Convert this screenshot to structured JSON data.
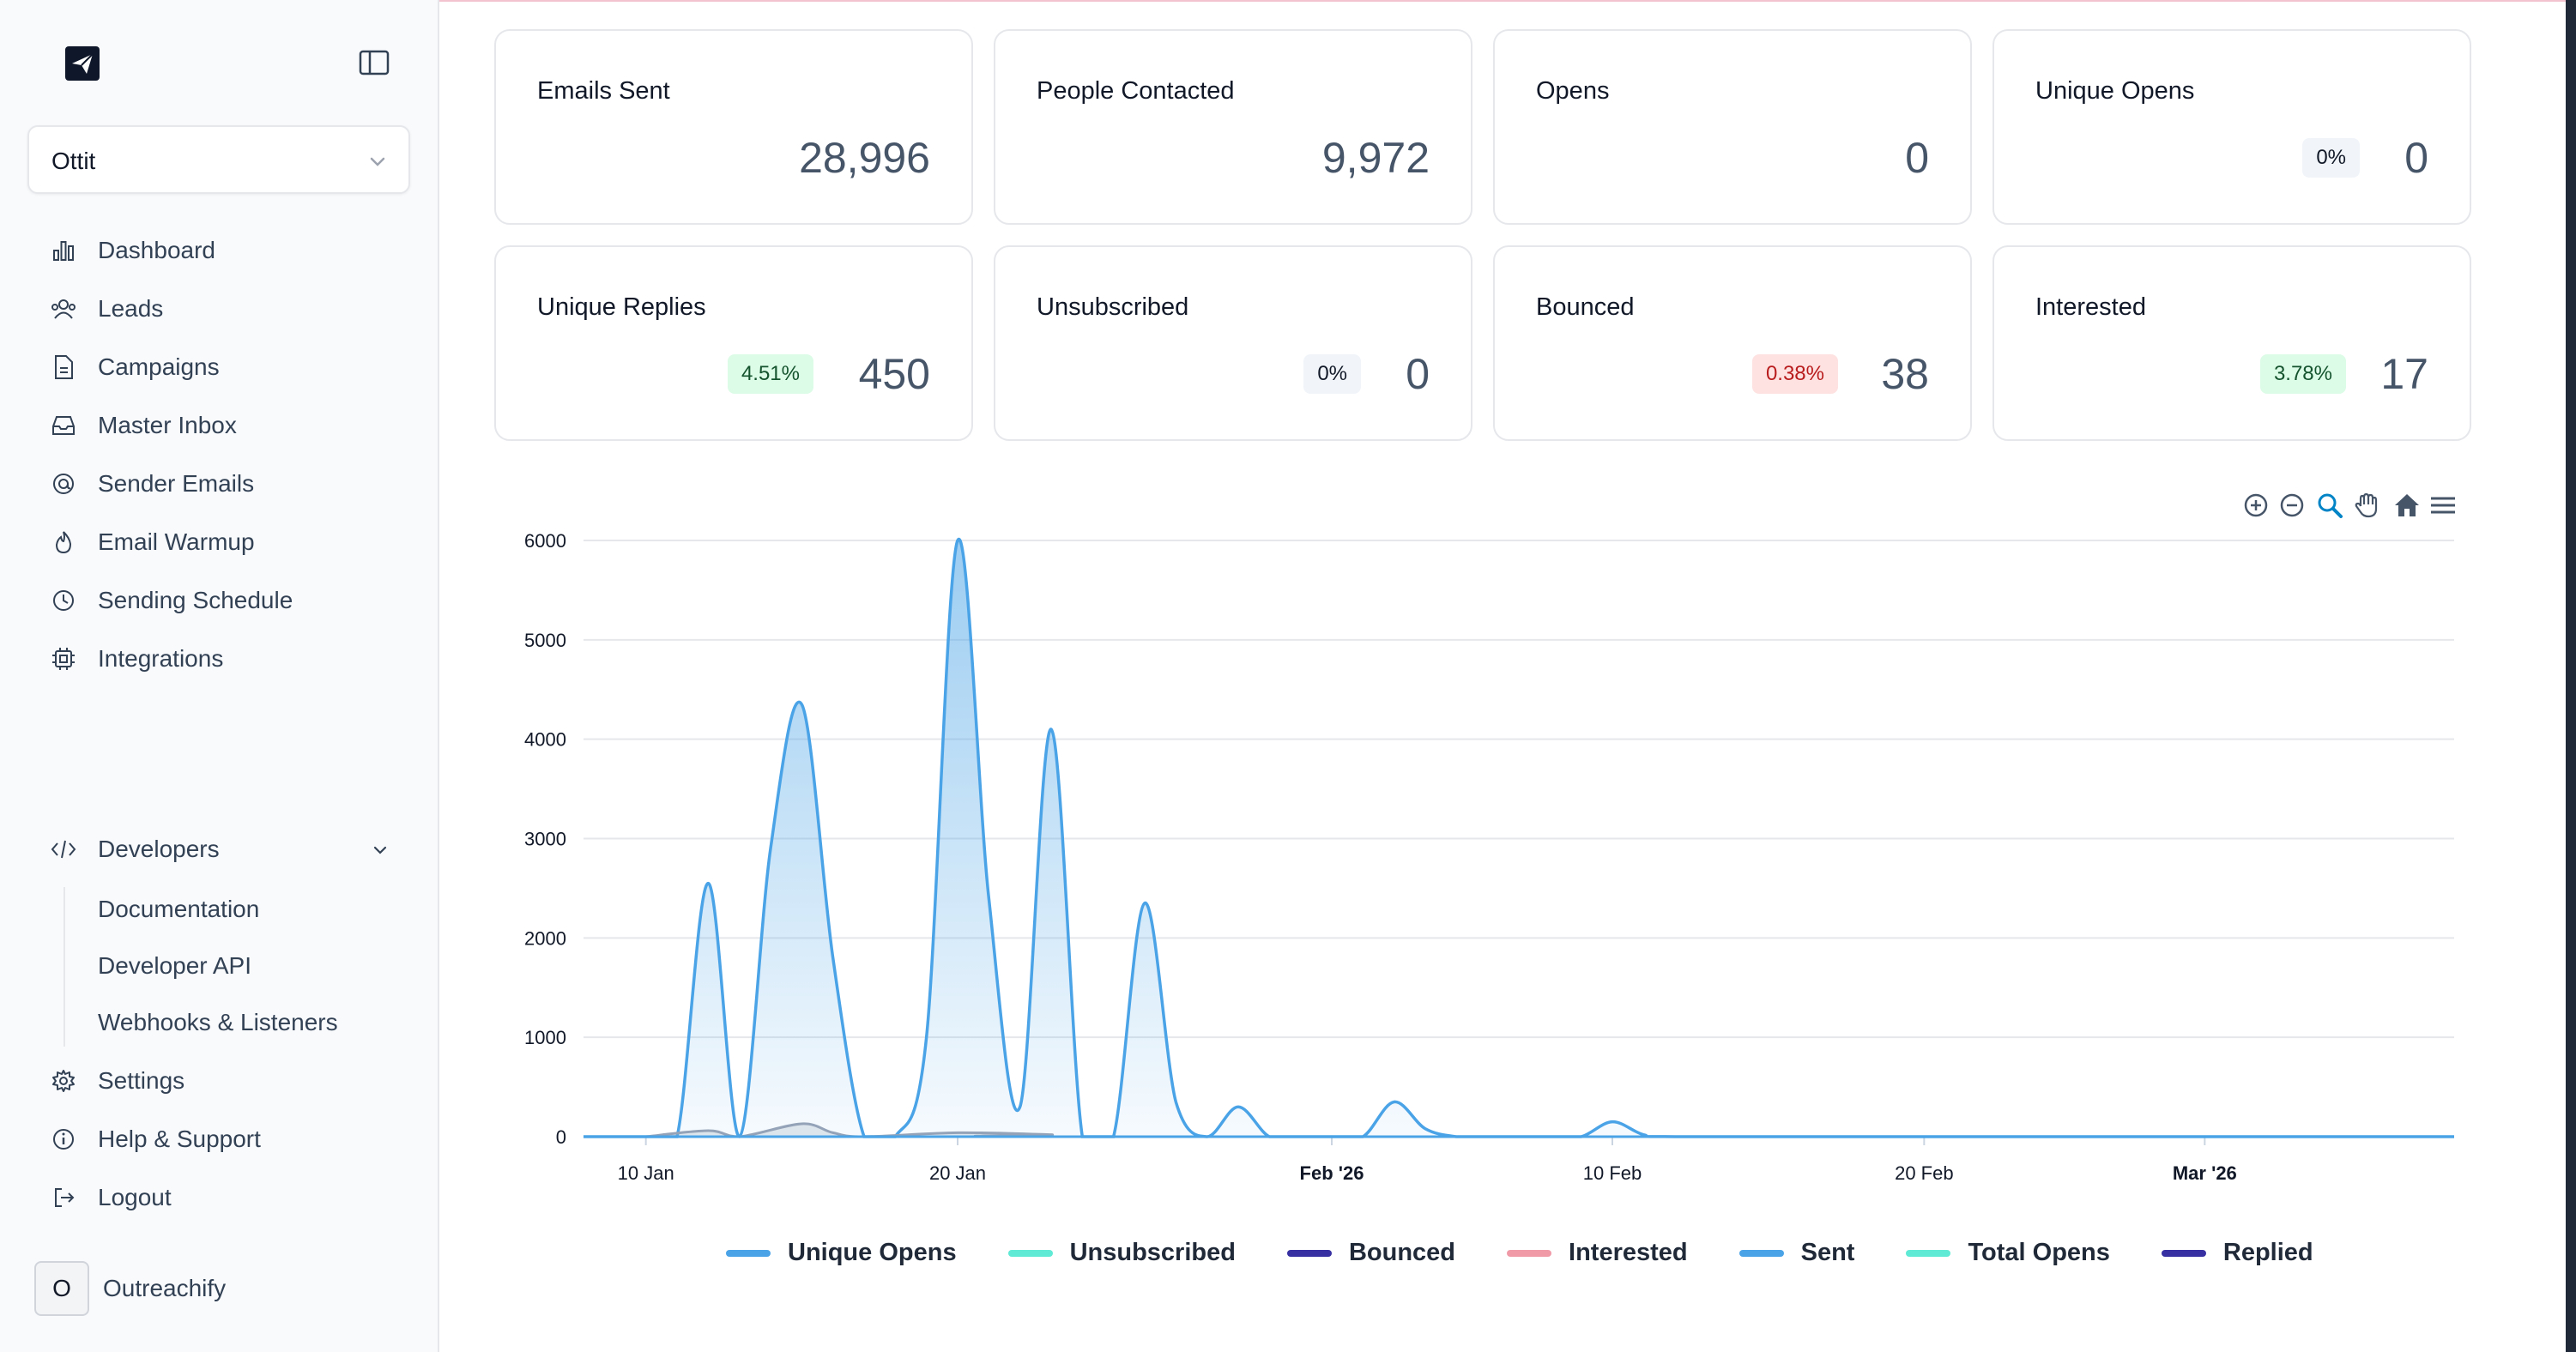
{
  "sidebar": {
    "workspace": "Ottit",
    "nav": [
      {
        "label": "Dashboard",
        "icon": "bar-chart-icon"
      },
      {
        "label": "Leads",
        "icon": "users-icon"
      },
      {
        "label": "Campaigns",
        "icon": "document-icon"
      },
      {
        "label": "Master Inbox",
        "icon": "inbox-icon"
      },
      {
        "label": "Sender Emails",
        "icon": "at-sign-icon"
      },
      {
        "label": "Email Warmup",
        "icon": "flame-icon"
      },
      {
        "label": "Sending Schedule",
        "icon": "clock-icon"
      },
      {
        "label": "Integrations",
        "icon": "chip-icon"
      }
    ],
    "developers": {
      "label": "Developers",
      "children": [
        "Documentation",
        "Developer API",
        "Webhooks & Listeners"
      ]
    },
    "bottom_nav": [
      {
        "label": "Settings",
        "icon": "gear-icon"
      },
      {
        "label": "Help & Support",
        "icon": "info-icon"
      },
      {
        "label": "Logout",
        "icon": "logout-icon"
      }
    ],
    "profile": {
      "initial": "O",
      "name": "Outreachify"
    }
  },
  "stats": [
    {
      "title": "Emails Sent",
      "value": "28,996",
      "badge": null
    },
    {
      "title": "People Contacted",
      "value": "9,972",
      "badge": null
    },
    {
      "title": "Opens",
      "value": "0",
      "badge": null
    },
    {
      "title": "Unique Opens",
      "value": "0",
      "badge": "0%",
      "badge_tone": "gray"
    },
    {
      "title": "Unique Replies",
      "value": "450",
      "badge": "4.51%",
      "badge_tone": "green"
    },
    {
      "title": "Unsubscribed",
      "value": "0",
      "badge": "0%",
      "badge_tone": "gray"
    },
    {
      "title": "Bounced",
      "value": "38",
      "badge": "0.38%",
      "badge_tone": "red"
    },
    {
      "title": "Interested",
      "value": "17",
      "badge": "3.78%",
      "badge_tone": "green"
    }
  ],
  "chart_toolbar": [
    "zoom-in-icon",
    "zoom-out-icon",
    "magnifier-icon",
    "pan-hand-icon",
    "home-icon",
    "menu-icon"
  ],
  "chart_data": {
    "type": "area",
    "x_ticks": [
      "10 Jan",
      "20 Jan",
      "Feb '26",
      "10 Feb",
      "20 Feb",
      "Mar '26"
    ],
    "y_ticks": [
      "0",
      "1000",
      "2000",
      "3000",
      "4000",
      "5000",
      "6000"
    ],
    "ylim": [
      0,
      6000
    ],
    "xlim": [
      "2026-01-08",
      "2026-03-09"
    ],
    "grid": true,
    "legend_position": "bottom",
    "series": [
      {
        "name": "Unique Opens",
        "color": "#4aa3e6",
        "values": []
      },
      {
        "name": "Unsubscribed",
        "color": "#5eead4",
        "values": []
      },
      {
        "name": "Bounced",
        "color": "#3730a3",
        "values": []
      },
      {
        "name": "Interested",
        "color": "#f09aa8",
        "values": []
      },
      {
        "name": "Sent",
        "color": "#4aa3e6",
        "points": [
          [
            "2026-01-08",
            0
          ],
          [
            "2026-01-09",
            0
          ],
          [
            "2026-01-10",
            0
          ],
          [
            "2026-01-11",
            0
          ],
          [
            "2026-01-12",
            2550
          ],
          [
            "2026-01-13",
            0
          ],
          [
            "2026-01-14",
            2900
          ],
          [
            "2026-01-15",
            4350
          ],
          [
            "2026-01-16",
            1800
          ],
          [
            "2026-01-17",
            0
          ],
          [
            "2026-01-18",
            0
          ],
          [
            "2026-01-19",
            1000
          ],
          [
            "2026-01-20",
            6000
          ],
          [
            "2026-01-21",
            2400
          ],
          [
            "2026-01-22",
            300
          ],
          [
            "2026-01-23",
            4100
          ],
          [
            "2026-01-24",
            0
          ],
          [
            "2026-01-25",
            0
          ],
          [
            "2026-01-26",
            2350
          ],
          [
            "2026-01-27",
            350
          ],
          [
            "2026-01-28",
            0
          ],
          [
            "2026-01-29",
            300
          ],
          [
            "2026-01-30",
            0
          ],
          [
            "2026-01-31",
            0
          ],
          [
            "2026-02-01",
            0
          ],
          [
            "2026-02-02",
            0
          ],
          [
            "2026-02-03",
            350
          ],
          [
            "2026-02-04",
            80
          ],
          [
            "2026-02-05",
            0
          ],
          [
            "2026-02-06",
            0
          ],
          [
            "2026-02-07",
            0
          ],
          [
            "2026-02-08",
            0
          ],
          [
            "2026-02-09",
            0
          ],
          [
            "2026-02-10",
            150
          ],
          [
            "2026-02-11",
            20
          ],
          [
            "2026-02-12",
            0
          ],
          [
            "2026-02-20",
            0
          ],
          [
            "2026-03-01",
            0
          ],
          [
            "2026-03-09",
            0
          ]
        ]
      },
      {
        "name": "Total Opens",
        "color": "#5eead4",
        "values": []
      },
      {
        "name": "Replied",
        "color": "#3730a3",
        "points": [
          [
            "2026-01-10",
            0
          ],
          [
            "2026-01-12",
            60
          ],
          [
            "2026-01-13",
            0
          ],
          [
            "2026-01-15",
            130
          ],
          [
            "2026-01-16",
            40
          ],
          [
            "2026-01-17",
            0
          ],
          [
            "2026-01-20",
            40
          ],
          [
            "2026-01-23",
            20
          ],
          [
            "2026-01-24",
            0
          ],
          [
            "2026-03-09",
            0
          ]
        ]
      }
    ]
  }
}
